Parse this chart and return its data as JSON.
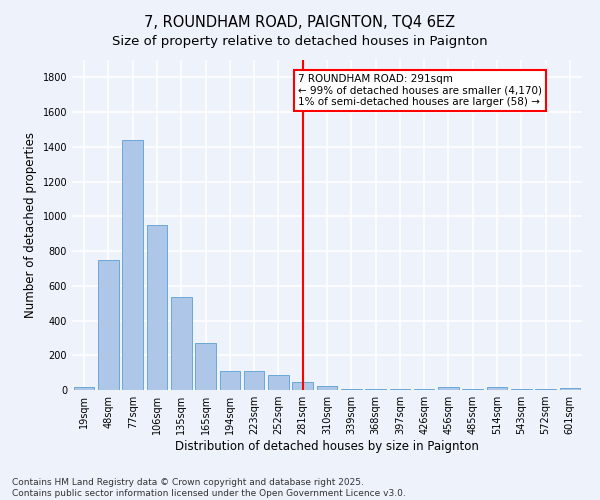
{
  "title": "7, ROUNDHAM ROAD, PAIGNTON, TQ4 6EZ",
  "subtitle": "Size of property relative to detached houses in Paignton",
  "xlabel": "Distribution of detached houses by size in Paignton",
  "ylabel": "Number of detached properties",
  "categories": [
    "19sqm",
    "48sqm",
    "77sqm",
    "106sqm",
    "135sqm",
    "165sqm",
    "194sqm",
    "223sqm",
    "252sqm",
    "281sqm",
    "310sqm",
    "339sqm",
    "368sqm",
    "397sqm",
    "426sqm",
    "456sqm",
    "485sqm",
    "514sqm",
    "543sqm",
    "572sqm",
    "601sqm"
  ],
  "values": [
    20,
    750,
    1440,
    950,
    535,
    270,
    110,
    108,
    85,
    45,
    25,
    8,
    5,
    5,
    5,
    20,
    3,
    15,
    3,
    3,
    12
  ],
  "bar_color": "#aec6e8",
  "bar_edge_color": "#5a9fd4",
  "background_color": "#eef2fb",
  "grid_color": "#ffffff",
  "vline_x_index": 9,
  "vline_color": "red",
  "annotation_text": "7 ROUNDHAM ROAD: 291sqm\n← 99% of detached houses are smaller (4,170)\n1% of semi-detached houses are larger (58) →",
  "annotation_box_color": "white",
  "annotation_box_edge_color": "red",
  "ylim": [
    0,
    1900
  ],
  "yticks": [
    0,
    200,
    400,
    600,
    800,
    1000,
    1200,
    1400,
    1600,
    1800
  ],
  "footer_text": "Contains HM Land Registry data © Crown copyright and database right 2025.\nContains public sector information licensed under the Open Government Licence v3.0.",
  "title_fontsize": 10.5,
  "subtitle_fontsize": 9.5,
  "label_fontsize": 8.5,
  "tick_fontsize": 7,
  "footer_fontsize": 6.5,
  "annotation_fontsize": 7.5
}
